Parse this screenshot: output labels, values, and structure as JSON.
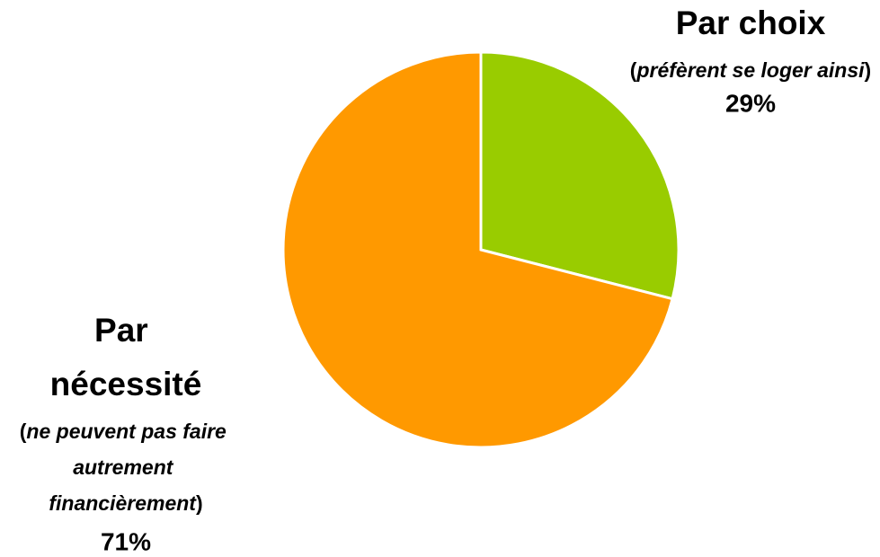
{
  "chart_data": {
    "type": "pie",
    "categories": [
      "Par choix",
      "Par nécessité"
    ],
    "notes": [
      "(préfèrent se loger ainsi)",
      "(ne peuvent pas faire autrement financièrement)"
    ],
    "values": [
      29,
      71
    ],
    "value_labels": [
      "29%",
      "71%"
    ],
    "colors": [
      "#99cc00",
      "#ff9900"
    ]
  }
}
